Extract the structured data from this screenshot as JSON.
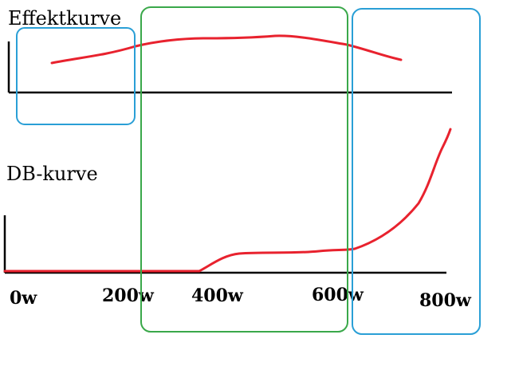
{
  "colors": {
    "curve": "#e8222e",
    "axis": "#000000",
    "box_blue": "#2a9fd6",
    "box_green": "#3aa84a",
    "background": "#ffffff"
  },
  "top_panel": {
    "title": "Effektkurve"
  },
  "bottom_panel": {
    "title": "DB-kurve"
  },
  "x_ticks": [
    "0w",
    "200w",
    "400w",
    "600w",
    "800w"
  ]
}
